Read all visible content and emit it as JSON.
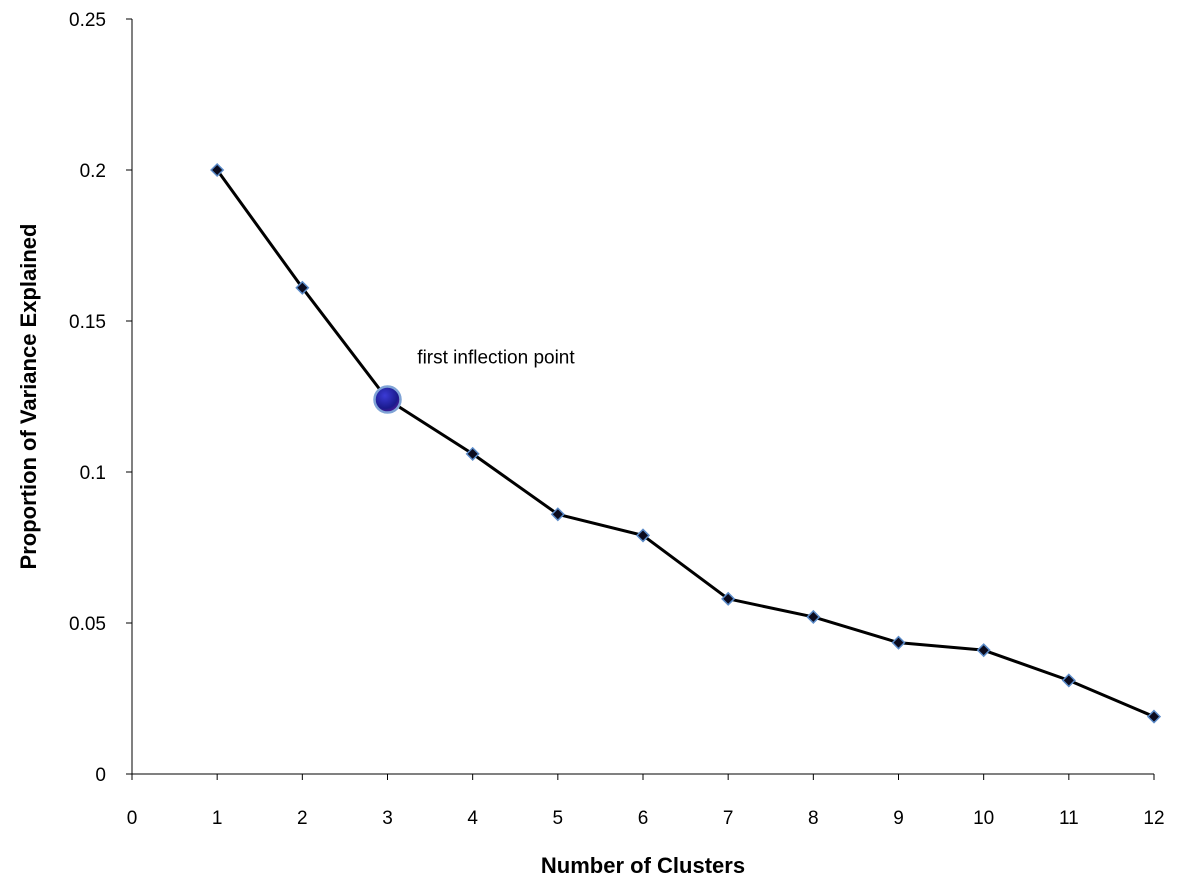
{
  "chart_data": {
    "type": "line",
    "title": "",
    "xlabel": "Number of Clusters",
    "ylabel": "Proportion of Variance Explained",
    "xlim": [
      0,
      12
    ],
    "ylim": [
      0,
      0.25
    ],
    "x_ticks": [
      "0",
      "1",
      "2",
      "3",
      "4",
      "5",
      "6",
      "7",
      "8",
      "9",
      "10",
      "11",
      "12"
    ],
    "y_ticks": [
      "0",
      "0.05",
      "0.1",
      "0.15",
      "0.2",
      "0.25"
    ],
    "grid": false,
    "series": [
      {
        "x": [
          1,
          2,
          3,
          4,
          5,
          6,
          7,
          8,
          9,
          10,
          11,
          12
        ],
        "values": [
          0.2,
          0.161,
          0.124,
          0.106,
          0.086,
          0.079,
          0.058,
          0.052,
          0.0435,
          0.041,
          0.031,
          0.019
        ],
        "color": "#000000",
        "marker": "diamond",
        "marker_color": "#0b0b1e"
      }
    ],
    "highlight": {
      "x": 3,
      "y": 0.124,
      "color": "#1a1a8c"
    },
    "annotations": [
      {
        "text": "first inflection point",
        "x": 3.35,
        "y": 0.136
      }
    ]
  }
}
